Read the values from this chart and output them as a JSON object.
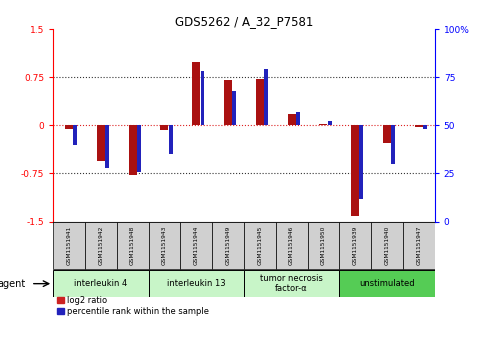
{
  "title": "GDS5262 / A_32_P7581",
  "samples": [
    "GSM1151941",
    "GSM1151942",
    "GSM1151948",
    "GSM1151943",
    "GSM1151944",
    "GSM1151949",
    "GSM1151945",
    "GSM1151946",
    "GSM1151950",
    "GSM1151939",
    "GSM1151940",
    "GSM1151947"
  ],
  "log2_ratio": [
    -0.05,
    -0.55,
    -0.78,
    -0.07,
    0.98,
    0.7,
    0.72,
    0.18,
    0.02,
    -1.42,
    -0.28,
    -0.03
  ],
  "percentile": [
    40,
    28,
    26,
    35,
    78,
    68,
    79,
    57,
    52,
    12,
    30,
    48
  ],
  "agents": [
    {
      "label": "interleukin 4",
      "indices": [
        0,
        1,
        2
      ],
      "color": "#c8f5c8"
    },
    {
      "label": "interleukin 13",
      "indices": [
        3,
        4,
        5
      ],
      "color": "#c8f5c8"
    },
    {
      "label": "tumor necrosis\nfactor-α",
      "indices": [
        6,
        7,
        8
      ],
      "color": "#c8f5c8"
    },
    {
      "label": "unstimulated",
      "indices": [
        9,
        10,
        11
      ],
      "color": "#55cc55"
    }
  ],
  "ylim": [
    -1.5,
    1.5
  ],
  "yticks_left": [
    -1.5,
    -0.75,
    0,
    0.75,
    1.5
  ],
  "ytick_labels_left": [
    "-1.5",
    "-0.75",
    "0",
    "0.75",
    "1.5"
  ],
  "yticks_right_pct": [
    0,
    25,
    50,
    75,
    100
  ],
  "ytick_labels_right": [
    "0",
    "25",
    "50",
    "75",
    "100%"
  ],
  "bar_color": "#aa1111",
  "dot_color": "#2222bb",
  "zero_line_color": "#dd2222",
  "dotted_line_color": "#333333",
  "bg_color": "#ffffff",
  "sample_box_color": "#d0d0d0",
  "agent_box_color_light": "#c8f5c8",
  "agent_box_color_dark": "#55cc55",
  "legend_log2_color": "#cc2222",
  "legend_pct_color": "#2222bb",
  "bar_width": 0.25,
  "dot_size": 0.12
}
